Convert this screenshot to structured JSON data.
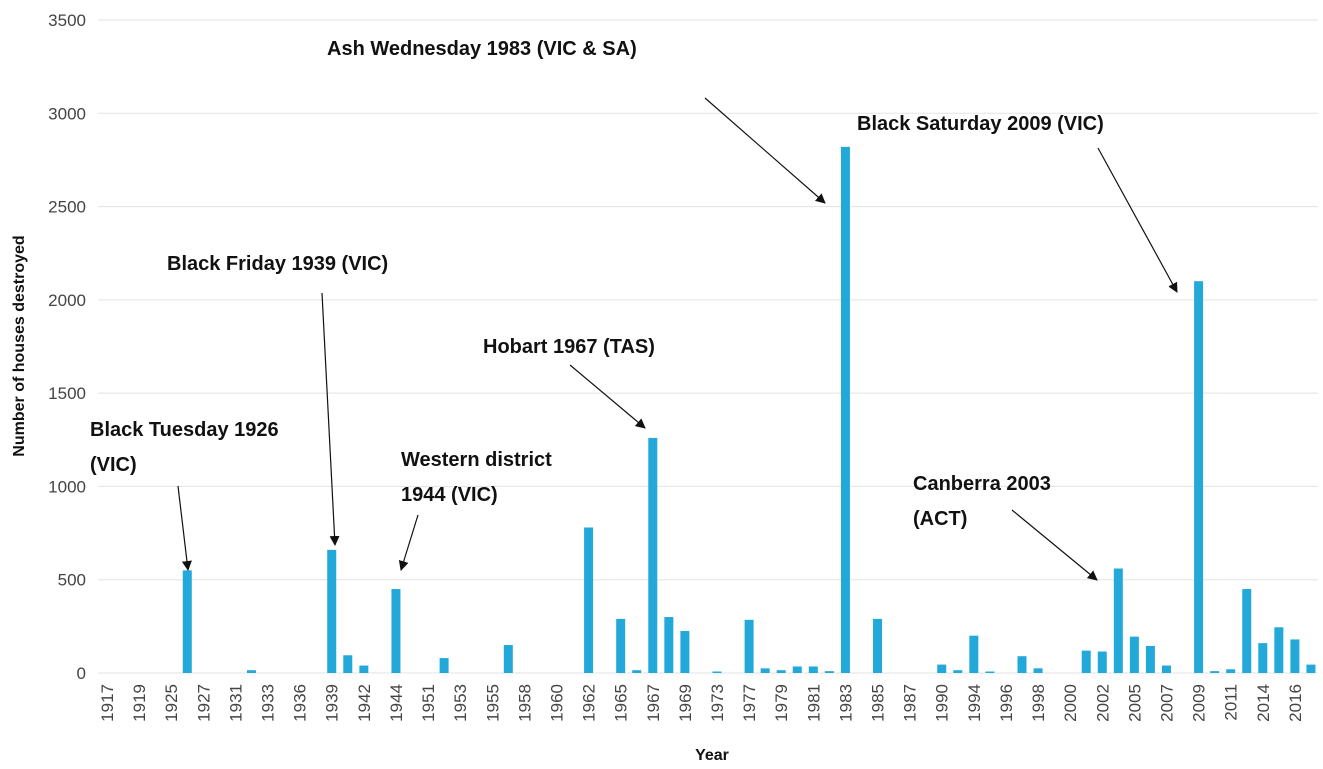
{
  "chart_data": {
    "type": "bar",
    "y_label": "Number of houses destroyed",
    "x_label": "Year",
    "categories": [
      "1917",
      null,
      "1919",
      null,
      "1925",
      null,
      "1927",
      null,
      "1931",
      null,
      "1933",
      null,
      "1936",
      null,
      "1939",
      null,
      "1942",
      null,
      "1944",
      null,
      "1951",
      null,
      "1953",
      null,
      "1955",
      null,
      "1958",
      null,
      "1960",
      null,
      "1962",
      null,
      "1965",
      null,
      "1967",
      null,
      "1969",
      null,
      "1973",
      null,
      "1977",
      null,
      "1979",
      null,
      "1981",
      null,
      "1983",
      null,
      "1985",
      null,
      "1987",
      null,
      "1990",
      null,
      "1994",
      null,
      "1996",
      null,
      "1998",
      null,
      "2000",
      null,
      "2002",
      null,
      "2005",
      null,
      "2007",
      null,
      "2009",
      null,
      "2011",
      null,
      "2014",
      null,
      "2016",
      null
    ],
    "values": [
      0,
      0,
      0,
      0,
      0,
      550,
      0,
      0,
      0,
      15,
      0,
      0,
      0,
      0,
      660,
      95,
      40,
      0,
      450,
      0,
      0,
      80,
      0,
      0,
      0,
      150,
      0,
      0,
      0,
      0,
      780,
      0,
      290,
      15,
      1260,
      300,
      225,
      0,
      8,
      0,
      285,
      25,
      15,
      35,
      35,
      10,
      2820,
      0,
      290,
      0,
      0,
      0,
      45,
      15,
      200,
      8,
      0,
      90,
      25,
      0,
      0,
      120,
      115,
      560,
      195,
      145,
      40,
      0,
      2100,
      10,
      20,
      450,
      160,
      245,
      180,
      45
    ],
    "color": "#23a9d9",
    "ylim": [
      0,
      3500
    ],
    "yticks": [
      0,
      500,
      1000,
      1500,
      2000,
      2500,
      3000,
      3500
    ],
    "grid": true,
    "annotations": [
      {
        "lines": [
          "Ash Wednesday 1983 (VIC & SA)"
        ]
      },
      {
        "lines": [
          "Black Saturday 2009 (VIC)"
        ]
      },
      {
        "lines": [
          "Black Friday 1939 (VIC)"
        ]
      },
      {
        "lines": [
          "Hobart 1967 (TAS)"
        ]
      },
      {
        "lines": [
          "Black Tuesday 1926",
          "(VIC)"
        ]
      },
      {
        "lines": [
          "Western district",
          "1944 (VIC)"
        ]
      },
      {
        "lines": [
          "Canberra 2003",
          "(ACT)"
        ]
      }
    ]
  }
}
